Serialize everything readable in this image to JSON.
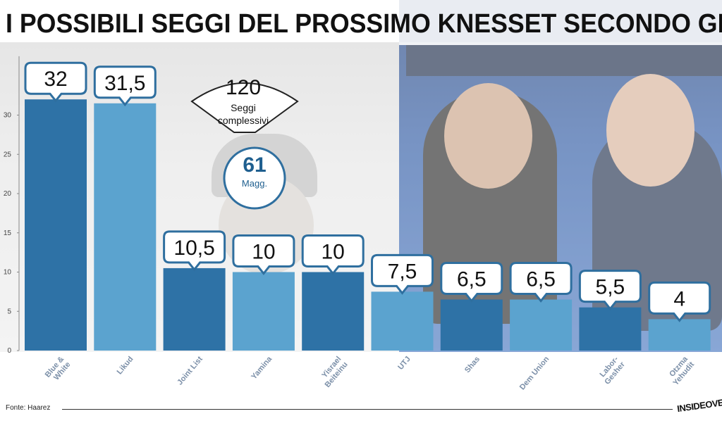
{
  "title": "I POSSIBILI SEGGI DEL PROSSIMO KNESSET SECONDO GLI ULTIMI SONDAGGI",
  "colors": {
    "dark_bar": "#2e72a6",
    "light_bar": "#5ba3cf",
    "bubble_border": "#2f6f9f",
    "axis": "#888888"
  },
  "total_panel": {
    "value": "120",
    "line1": "Seggi",
    "line2": "complessivi"
  },
  "majority_panel": {
    "value": "61",
    "label": "Magg."
  },
  "source": "Fonte: Haarez",
  "logo": "INSIDEOVER",
  "chart_data": {
    "type": "bar",
    "categories": [
      "Blue & White",
      "Likud",
      "Joint List",
      "Yamina",
      "Yisrael Beiteinu",
      "UTJ",
      "Shas",
      "Dem Union",
      "Labor-Gesher",
      "Otzma Yehudit"
    ],
    "category_lines": [
      [
        "Blue &",
        "White"
      ],
      [
        "Likud"
      ],
      [
        "Joint List"
      ],
      [
        "Yamina"
      ],
      [
        "Yisrael",
        "Beiteinu"
      ],
      [
        "UTJ"
      ],
      [
        "Shas"
      ],
      [
        "Dem Union"
      ],
      [
        "Labor-",
        "Gesher"
      ],
      [
        "Otzma",
        "Yehudit"
      ]
    ],
    "values": [
      32,
      31.5,
      10.5,
      10,
      10,
      7.5,
      6.5,
      6.5,
      5.5,
      4
    ],
    "value_labels": [
      "32",
      "31,5",
      "10,5",
      "10",
      "10",
      "7,5",
      "6,5",
      "6,5",
      "5,5",
      "4"
    ],
    "shades": [
      "dark",
      "light",
      "dark",
      "light",
      "dark",
      "light",
      "dark",
      "light",
      "dark",
      "light"
    ],
    "yticks": [
      0,
      5,
      10,
      15,
      20,
      25,
      30
    ],
    "ylim": [
      0,
      37.5
    ],
    "xlabel": "",
    "ylabel": "",
    "grid": false
  }
}
